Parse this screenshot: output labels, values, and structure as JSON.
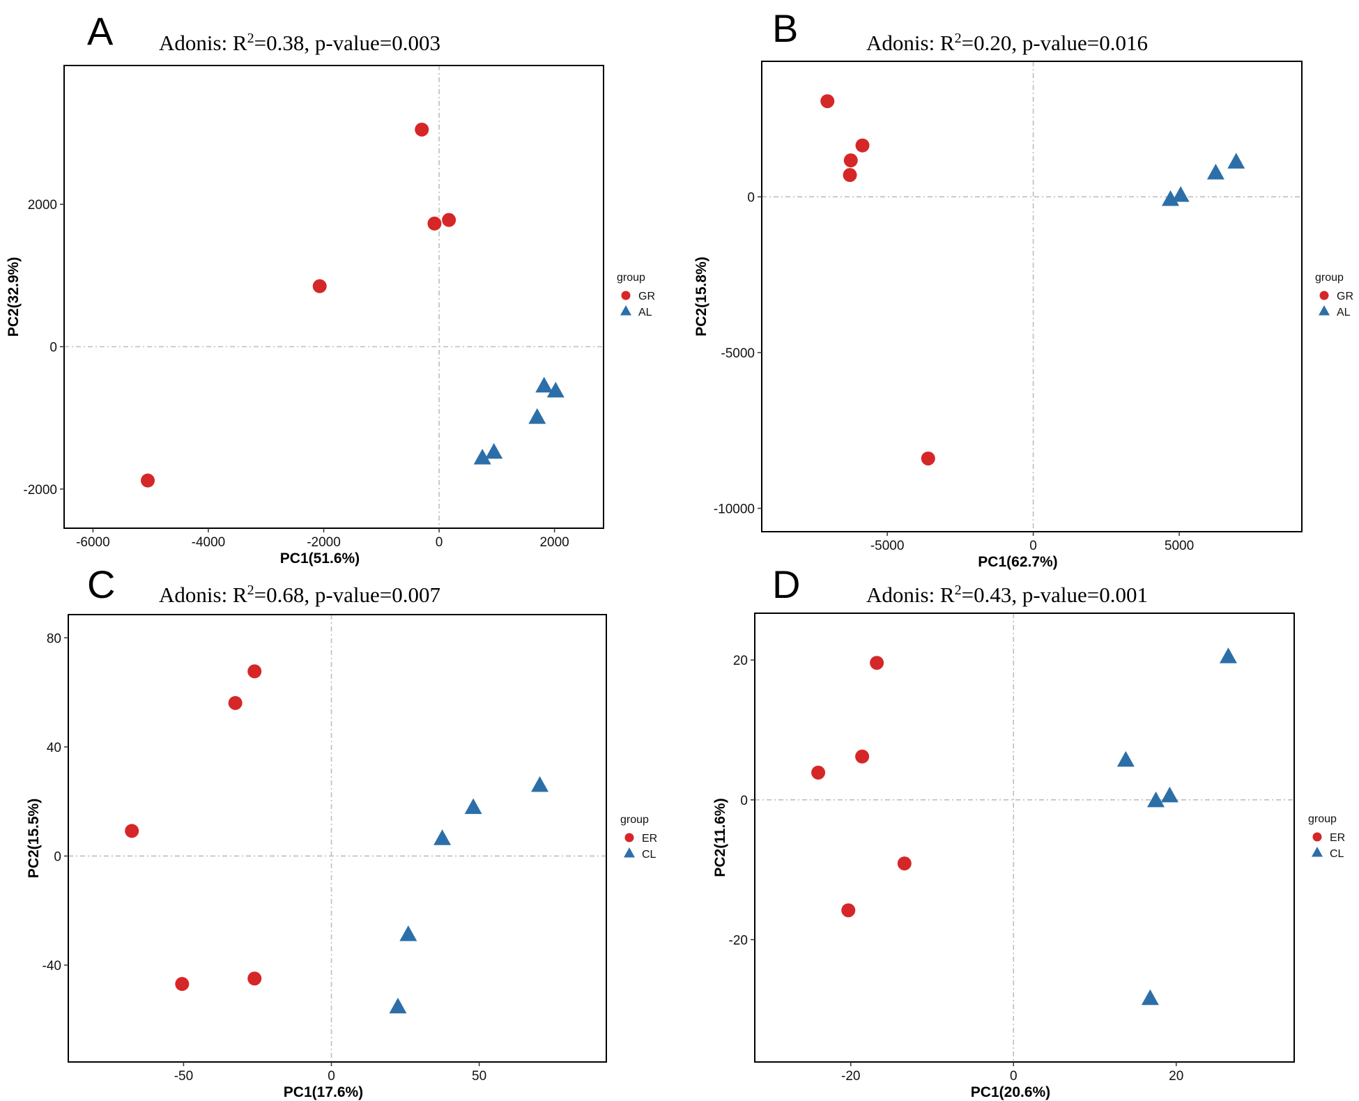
{
  "colors": {
    "red": "#d62728",
    "blue": "#2c6fa8",
    "ref_line": "#bdbdbd",
    "frame": "#000000"
  },
  "chart_data": [
    {
      "type": "scatter",
      "panel": "A",
      "title_prefix": "Adonis: R",
      "title_sup": "2",
      "title_suffix": "=0.38, p-value=0.003",
      "xlabel": "PC1(51.6%)",
      "ylabel": "PC2(32.9%)",
      "xlim": [
        -6500,
        2850
      ],
      "ylim": [
        -2550,
        3950
      ],
      "xticks": [
        -6000,
        -4000,
        -2000,
        0,
        2000
      ],
      "xtick_labels": [
        "-6000",
        "-4000",
        "-2000",
        "0",
        "2000"
      ],
      "yticks": [
        -2000,
        0,
        2000
      ],
      "ytick_labels": [
        "-2000",
        "0",
        "2000"
      ],
      "grid": false,
      "reference_lines": {
        "x": 0,
        "y": 0
      },
      "legend": {
        "title": "group",
        "placement": "right"
      },
      "series": [
        {
          "name": "GR",
          "marker": "circle",
          "color": "#d62728",
          "points": [
            [
              -5050,
              -1880
            ],
            [
              -2070,
              850
            ],
            [
              -300,
              3050
            ],
            [
              -80,
              1730
            ],
            [
              170,
              1780
            ]
          ]
        },
        {
          "name": "AL",
          "marker": "triangle",
          "color": "#2c6fa8",
          "points": [
            [
              750,
              -1570
            ],
            [
              950,
              -1490
            ],
            [
              1700,
              -1000
            ],
            [
              1820,
              -560
            ],
            [
              2020,
              -630
            ]
          ]
        }
      ]
    },
    {
      "type": "scatter",
      "panel": "B",
      "title_prefix": "Adonis: R",
      "title_sup": "2",
      "title_suffix": "=0.20, p-value=0.016",
      "xlabel": "PC1(62.7%)",
      "ylabel": "PC2(15.8%)",
      "xlim": [
        -9300,
        9200
      ],
      "ylim": [
        -10750,
        4350
      ],
      "xticks": [
        -5000,
        0,
        5000
      ],
      "xtick_labels": [
        "-5000",
        "0",
        "5000"
      ],
      "yticks": [
        -10000,
        -5000,
        0
      ],
      "ytick_labels": [
        "-10000",
        "-5000",
        "0"
      ],
      "grid": false,
      "reference_lines": {
        "x": 0,
        "y": 0
      },
      "legend": {
        "title": "group",
        "placement": "right"
      },
      "series": [
        {
          "name": "GR",
          "marker": "circle",
          "color": "#d62728",
          "points": [
            [
              -7050,
              3070
            ],
            [
              -6250,
              1170
            ],
            [
              -6280,
              700
            ],
            [
              -5850,
              1650
            ],
            [
              -3600,
              -8400
            ]
          ]
        },
        {
          "name": "AL",
          "marker": "triangle",
          "color": "#2c6fa8",
          "points": [
            [
              4700,
              -100
            ],
            [
              5050,
              30
            ],
            [
              6250,
              750
            ],
            [
              6950,
              1100
            ]
          ]
        }
      ]
    },
    {
      "type": "scatter",
      "panel": "C",
      "title_prefix": "Adonis: R",
      "title_sup": "2",
      "title_suffix": "=0.68, p-value=0.007",
      "xlabel": "PC1(17.6%)",
      "ylabel": "PC2(15.5%)",
      "xlim": [
        -89,
        93
      ],
      "ylim": [
        -75.5,
        88.5
      ],
      "xticks": [
        -50,
        0,
        50
      ],
      "xtick_labels": [
        "-50",
        "0",
        "50"
      ],
      "yticks": [
        -40,
        0,
        40,
        80
      ],
      "ytick_labels": [
        "-40",
        "0",
        "40",
        "80"
      ],
      "grid": false,
      "reference_lines": {
        "x": 0,
        "y": 0
      },
      "legend": {
        "title": "group",
        "placement": "right"
      },
      "series": [
        {
          "name": "ER",
          "marker": "circle",
          "color": "#d62728",
          "points": [
            [
              -67.5,
              9.2
            ],
            [
              -50.5,
              -46.9
            ],
            [
              -32.5,
              56.1
            ],
            [
              -26,
              67.7
            ],
            [
              -26,
              -44.9
            ]
          ]
        },
        {
          "name": "CL",
          "marker": "triangle",
          "color": "#2c6fa8",
          "points": [
            [
              22.5,
              -55.5
            ],
            [
              26,
              -29
            ],
            [
              37.5,
              6.2
            ],
            [
              48,
              17.6
            ],
            [
              70.5,
              25.7
            ]
          ]
        }
      ]
    },
    {
      "type": "scatter",
      "panel": "D",
      "title_prefix": "Adonis: R",
      "title_sup": "2",
      "title_suffix": "=0.43, p-value=0.001",
      "xlabel": "PC1(20.6%)",
      "ylabel": "PC2(11.6%)",
      "xlim": [
        -31.8,
        34.5
      ],
      "ylim": [
        -37.5,
        26.7
      ],
      "xticks": [
        -20,
        0,
        20
      ],
      "xtick_labels": [
        "-20",
        "0",
        "20"
      ],
      "yticks": [
        -20,
        0,
        20
      ],
      "ytick_labels": [
        "-20",
        "0",
        "20"
      ],
      "grid": false,
      "reference_lines": {
        "x": 0,
        "y": 0
      },
      "legend": {
        "title": "group",
        "placement": "right"
      },
      "series": [
        {
          "name": "ER",
          "marker": "circle",
          "color": "#d62728",
          "points": [
            [
              -24,
              3.9
            ],
            [
              -20.3,
              -15.8
            ],
            [
              -18.6,
              6.2
            ],
            [
              -16.8,
              19.6
            ],
            [
              -13.4,
              -9.1
            ]
          ]
        },
        {
          "name": "CL",
          "marker": "triangle",
          "color": "#2c6fa8",
          "points": [
            [
              13.8,
              5.6
            ],
            [
              16.8,
              -28.5
            ],
            [
              17.5,
              -0.2
            ],
            [
              19.2,
              0.5
            ],
            [
              26.4,
              20.4
            ]
          ]
        }
      ]
    }
  ]
}
